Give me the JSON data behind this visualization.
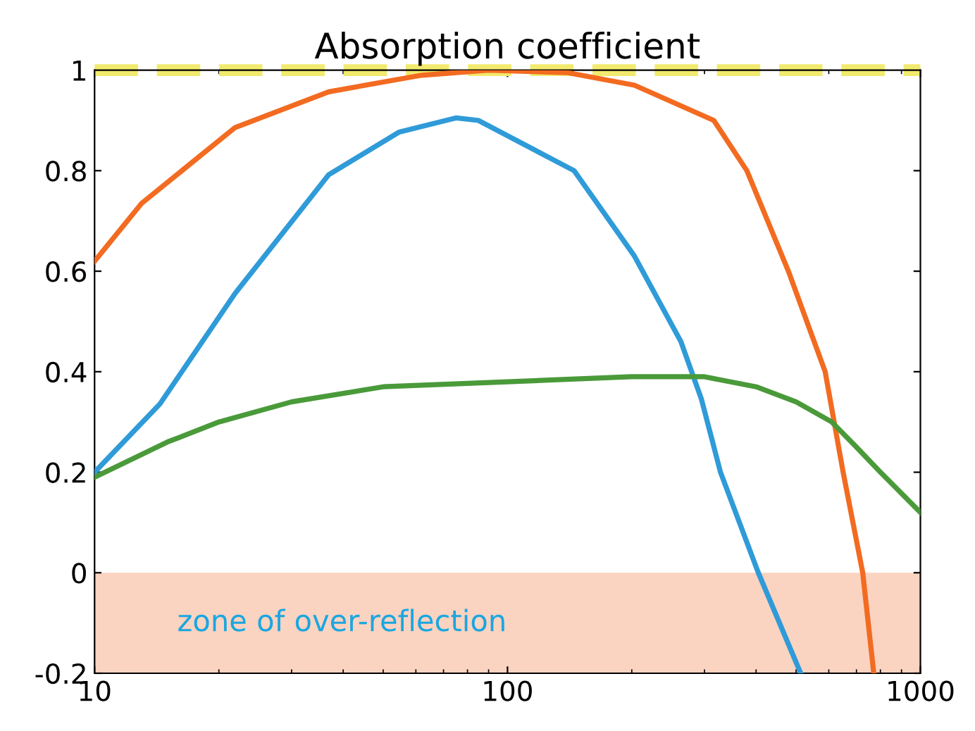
{
  "chart_data": {
    "type": "line",
    "title": "Absorption coefficient",
    "log": "x",
    "xlim": [
      10,
      1000
    ],
    "xticks": [
      10,
      100,
      1000
    ],
    "ylim": [
      -0.2,
      1
    ],
    "yticks": [
      -0.2,
      0,
      0.2,
      0.4,
      0.6,
      0.8,
      1
    ],
    "grid": false,
    "legend": false,
    "marker": "none",
    "line_style": "solid",
    "series": [
      {
        "color": "#2f9bd8",
        "x": [
          10,
          14.4,
          21.9,
          36.9,
          54.7,
          75,
          85,
          145,
          203,
          263,
          295,
          328,
          405,
          513
        ],
        "values": [
          0.2,
          0.336,
          0.556,
          0.792,
          0.877,
          0.905,
          0.9,
          0.8,
          0.63,
          0.46,
          0.345,
          0.2,
          0,
          -0.2
        ]
      },
      {
        "color": "#f26b21",
        "x": [
          10,
          13,
          21.9,
          36.9,
          62,
          90,
          140,
          203,
          316,
          380,
          479,
          588,
          650,
          725,
          771
        ],
        "values": [
          0.62,
          0.735,
          0.886,
          0.957,
          0.99,
          1.0,
          0.995,
          0.97,
          0.9,
          0.8,
          0.6,
          0.4,
          0.2,
          0,
          -0.2
        ]
      },
      {
        "color": "#4a9a3a",
        "x": [
          10,
          15,
          20,
          30,
          50,
          100,
          200,
          300,
          400,
          500,
          610,
          700,
          800,
          1000
        ],
        "values": [
          0.19,
          0.26,
          0.3,
          0.34,
          0.37,
          0.38,
          0.39,
          0.39,
          0.37,
          0.34,
          0.3,
          0.25,
          0.2,
          0.12
        ]
      }
    ],
    "ref_lines": [
      {
        "axis": "y",
        "value": 1,
        "color": "#f2ea6e",
        "line_style": "dashed"
      }
    ],
    "bands": [
      {
        "axis": "y",
        "from": -0.2,
        "to": 0,
        "label": "zone of over-reflection",
        "color": "#fbd3c1"
      }
    ]
  }
}
